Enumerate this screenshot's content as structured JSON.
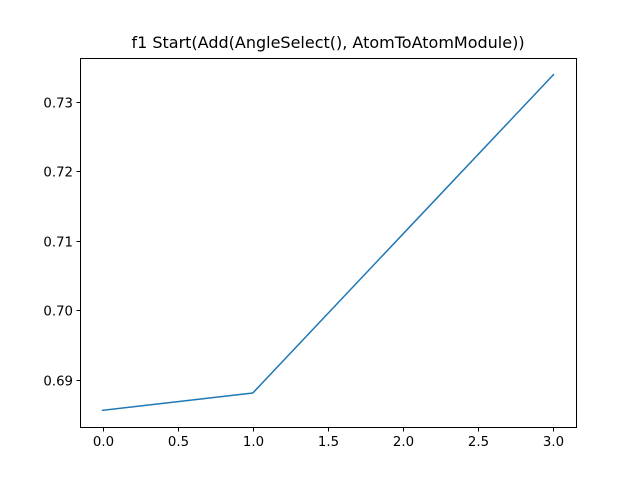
{
  "chart_data": {
    "type": "line",
    "title": "f1 Start(Add(AngleSelect(), AtomToAtomModule))",
    "xlabel": "",
    "ylabel": "",
    "x": [
      0,
      1,
      2,
      3
    ],
    "series": [
      {
        "values": [
          0.6856,
          0.6881,
          0.711,
          0.7339
        ],
        "color": "#1f77b4"
      }
    ],
    "xlim": [
      -0.15,
      3.15
    ],
    "ylim": [
      0.6832,
      0.7363
    ],
    "xticks": [
      0.0,
      0.5,
      1.0,
      1.5,
      2.0,
      2.5,
      3.0
    ],
    "xtick_labels": [
      "0.0",
      "0.5",
      "1.0",
      "1.5",
      "2.0",
      "2.5",
      "3.0"
    ],
    "yticks": [
      0.69,
      0.7,
      0.71,
      0.72,
      0.73
    ],
    "ytick_labels": [
      "0.69",
      "0.70",
      "0.71",
      "0.72",
      "0.73"
    ],
    "grid": false,
    "legend": "none"
  }
}
